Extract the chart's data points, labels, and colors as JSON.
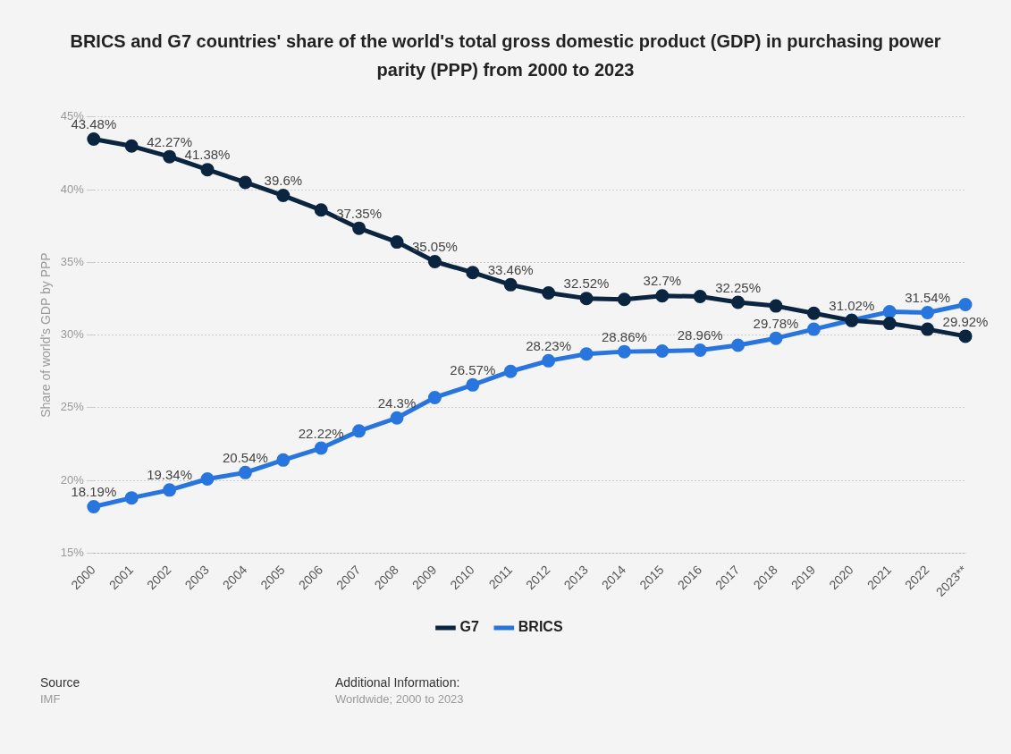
{
  "chart_data": {
    "type": "line",
    "title": "BRICS and G7 countries' share of the world's total gross domestic product (GDP) in purchasing power parity (PPP) from 2000 to 2023",
    "ylabel": "Share of world's GDP by PPP",
    "categories": [
      "2000",
      "2001",
      "2002",
      "2003",
      "2004",
      "2005",
      "2006",
      "2007",
      "2008",
      "2009",
      "2010",
      "2011",
      "2012",
      "2013",
      "2014",
      "2015",
      "2016",
      "2017",
      "2018",
      "2019",
      "2020",
      "2021",
      "2022",
      "2023**"
    ],
    "series": [
      {
        "name": "BRICS",
        "color": "#2876dd",
        "values": [
          18.19,
          18.8,
          19.34,
          20.1,
          20.54,
          21.4,
          22.22,
          23.4,
          24.3,
          25.7,
          26.57,
          27.5,
          28.23,
          28.7,
          28.86,
          28.9,
          28.96,
          29.3,
          29.78,
          30.4,
          31.02,
          31.6,
          31.54,
          32.1
        ],
        "value_labels": [
          "18.19%",
          null,
          "19.34%",
          null,
          "20.54%",
          null,
          "22.22%",
          null,
          "24.3%",
          null,
          "26.57%",
          null,
          "28.23%",
          null,
          "28.86%",
          null,
          "28.96%",
          null,
          "29.78%",
          null,
          "31.02%",
          null,
          "31.54%",
          null
        ]
      },
      {
        "name": "G7",
        "color": "#0b2541",
        "values": [
          43.48,
          43.0,
          42.27,
          41.38,
          40.5,
          39.6,
          38.6,
          37.35,
          36.4,
          35.05,
          34.3,
          33.46,
          32.9,
          32.52,
          32.45,
          32.7,
          32.65,
          32.25,
          32.0,
          31.5,
          31.0,
          30.8,
          30.4,
          29.92
        ],
        "value_labels": [
          "43.48%",
          null,
          "42.27%",
          "41.38%",
          null,
          "39.6%",
          null,
          "37.35%",
          null,
          "35.05%",
          null,
          "33.46%",
          null,
          "32.52%",
          null,
          "32.7%",
          null,
          "32.25%",
          null,
          null,
          null,
          null,
          null,
          "29.92%"
        ]
      }
    ],
    "ylim": [
      15,
      45
    ],
    "yticks": [
      {
        "value": 15,
        "label": "15%"
      },
      {
        "value": 20,
        "label": "20%"
      },
      {
        "value": 25,
        "label": "25%"
      },
      {
        "value": 30,
        "label": "30%"
      },
      {
        "value": 35,
        "label": "35%"
      },
      {
        "value": 40,
        "label": "40%"
      },
      {
        "value": 45,
        "label": "45%"
      }
    ],
    "grid": "y",
    "legend": "bottom",
    "marker": "circle",
    "line_style": "solid",
    "annotations": [
      "Source",
      "IMF",
      "Additional Information:",
      "Worldwide; 2000 to 2023"
    ]
  }
}
